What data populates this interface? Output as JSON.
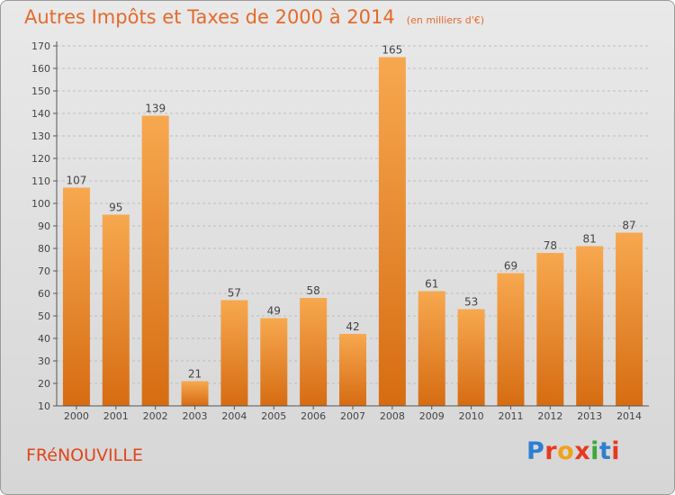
{
  "header": {
    "title": "Autres Impôts et Taxes de 2000 à 2014",
    "subtitle": "(en milliers d'€)"
  },
  "footer": {
    "commune": "FRéNOUVILLE",
    "logo": "Proxiti",
    "logo_colors": [
      "#2f7fd0",
      "#e63a1f",
      "#f0a21b",
      "#e63a1f",
      "#3da83a",
      "#2f7fd0",
      "#e63a1f"
    ]
  },
  "colors": {
    "bar_light": "#f7a84f",
    "bar_dark": "#d66c12",
    "title": "#e46a2a"
  },
  "chart_data": {
    "type": "bar",
    "categories": [
      "2000",
      "2001",
      "2002",
      "2003",
      "2004",
      "2005",
      "2006",
      "2007",
      "2008",
      "2009",
      "2010",
      "2011",
      "2012",
      "2013",
      "2014"
    ],
    "values": [
      107,
      95,
      139,
      21,
      57,
      49,
      58,
      42,
      165,
      61,
      53,
      69,
      78,
      81,
      87
    ],
    "ylim": [
      10,
      170
    ],
    "yticks": [
      10,
      20,
      30,
      40,
      50,
      60,
      70,
      80,
      90,
      100,
      110,
      120,
      130,
      140,
      150,
      160,
      170
    ],
    "grid": true,
    "data_labels": true
  }
}
